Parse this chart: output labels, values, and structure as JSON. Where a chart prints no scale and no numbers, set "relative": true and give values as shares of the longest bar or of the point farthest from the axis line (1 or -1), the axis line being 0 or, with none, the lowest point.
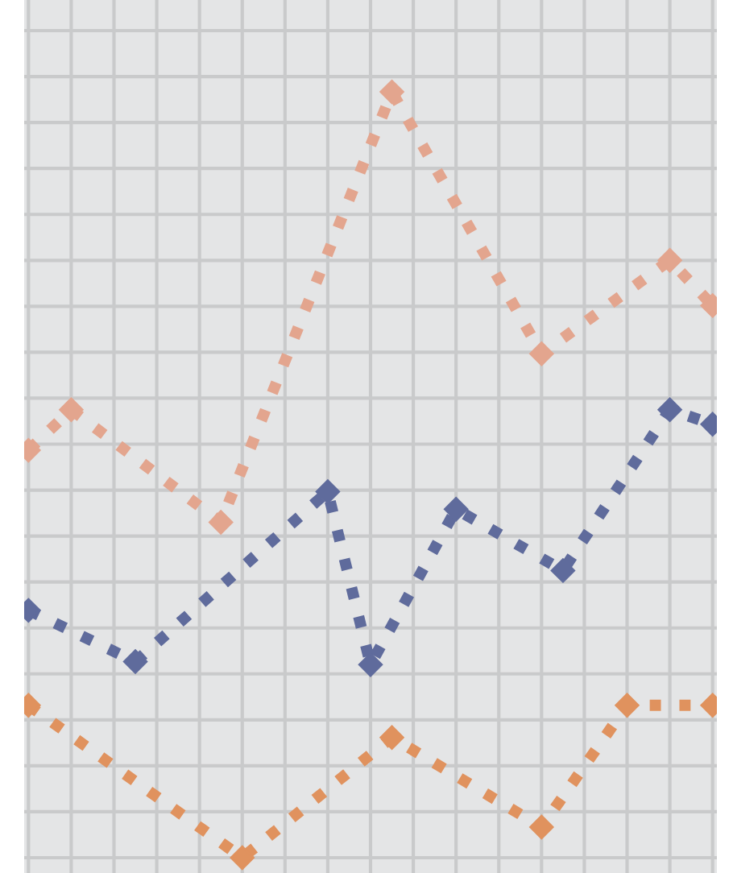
{
  "chart_data": {
    "type": "line",
    "relative": true,
    "grid": true,
    "marker": "diamond",
    "line_style": "dotted",
    "categories": [
      null,
      null,
      null,
      null,
      null,
      null,
      null,
      null,
      null,
      null,
      null,
      null,
      null,
      null,
      null,
      null,
      null,
      null,
      null,
      null,
      null,
      null,
      null,
      null,
      null,
      null,
      null,
      null,
      null,
      null,
      null,
      null,
      null
    ],
    "series": [
      {
        "color": "#e3a58e",
        "values": [
          0.532,
          null,
          0.585,
          null,
          null,
          null,
          null,
          null,
          null,
          0.438,
          null,
          null,
          null,
          null,
          null,
          null,
          null,
          1,
          null,
          null,
          null,
          null,
          null,
          null,
          0.658,
          null,
          null,
          null,
          null,
          null,
          0.78,
          null,
          0.721
        ]
      },
      {
        "color": "#5f6b9c",
        "values": [
          0.323,
          null,
          null,
          null,
          null,
          0.256,
          null,
          null,
          null,
          null,
          null,
          null,
          null,
          null,
          0.478,
          null,
          0.252,
          null,
          null,
          null,
          0.455,
          null,
          null,
          null,
          null,
          0.375,
          null,
          null,
          null,
          null,
          0.585,
          null,
          0.566
        ]
      },
      {
        "color": "#e0925e",
        "values": [
          0.199,
          null,
          null,
          null,
          null,
          null,
          null,
          null,
          null,
          null,
          0,
          null,
          null,
          null,
          null,
          null,
          null,
          0.157,
          null,
          null,
          null,
          null,
          null,
          null,
          0.04,
          null,
          null,
          null,
          0.199,
          null,
          null,
          null,
          0.199
        ]
      }
    ]
  }
}
